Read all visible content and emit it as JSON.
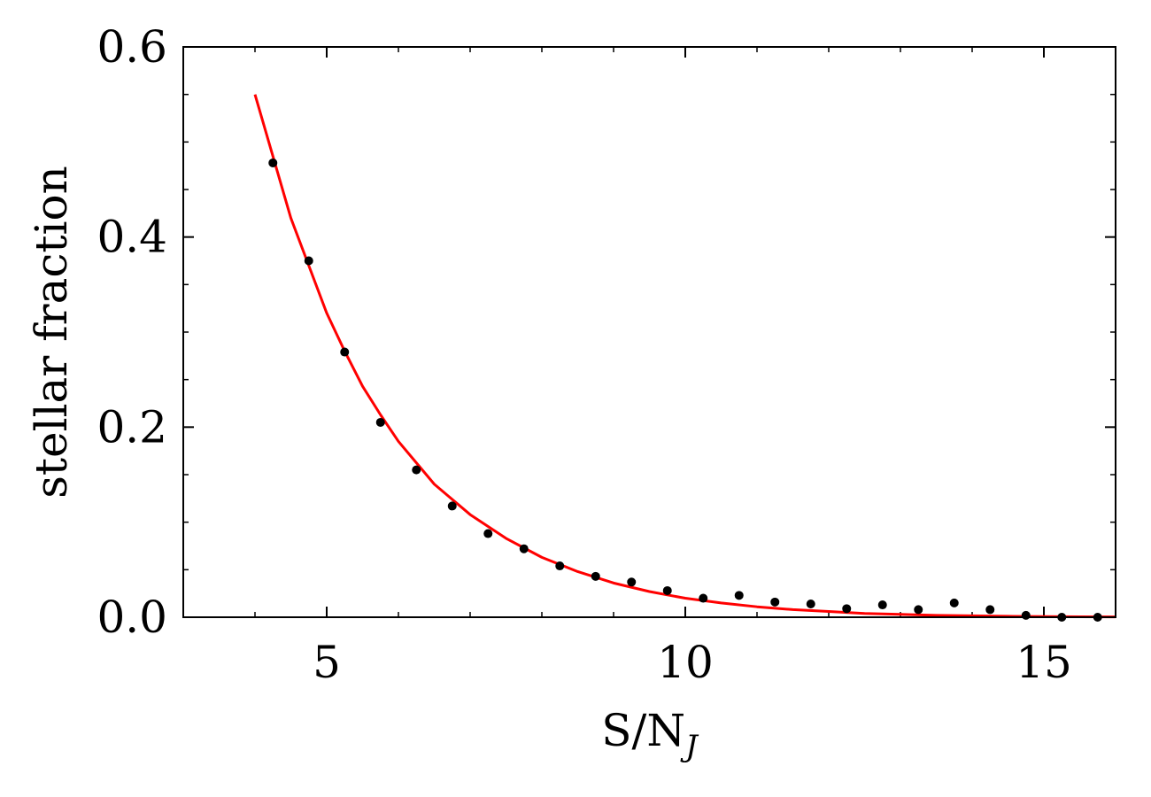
{
  "chart_data": {
    "type": "scatter",
    "title": "",
    "xlabel": "S/N",
    "xlabel_subscript": "J",
    "ylabel": "stellar fraction",
    "xlim": [
      3,
      16
    ],
    "ylim": [
      0,
      0.6
    ],
    "grid": false,
    "x_ticks": [
      5,
      10,
      15
    ],
    "x_tick_labels": [
      "5",
      "10",
      "15"
    ],
    "y_ticks": [
      0,
      0.2,
      0.4,
      0.6
    ],
    "y_tick_labels": [
      "0.0",
      "0.2",
      "0.4",
      "0.6"
    ],
    "series": [
      {
        "kind": "points",
        "color": "#000000",
        "x": [
          4.25,
          4.75,
          5.25,
          5.75,
          6.25,
          6.75,
          7.25,
          7.75,
          8.25,
          8.75,
          9.25,
          9.75,
          10.25,
          10.75,
          11.25,
          11.75,
          12.25,
          12.75,
          13.25,
          13.75,
          14.25,
          14.75,
          15.25,
          15.75
        ],
        "y": [
          0.478,
          0.375,
          0.279,
          0.205,
          0.155,
          0.117,
          0.088,
          0.072,
          0.054,
          0.043,
          0.037,
          0.028,
          0.02,
          0.023,
          0.016,
          0.014,
          0.009,
          0.013,
          0.008,
          0.015,
          0.008,
          0.002,
          0.0,
          0.0
        ]
      },
      {
        "kind": "line",
        "color": "#ff0000",
        "x": [
          4.0,
          4.25,
          4.5,
          4.75,
          5.0,
          5.25,
          5.5,
          5.75,
          6.0,
          6.5,
          7.0,
          7.5,
          8.0,
          8.5,
          9.0,
          9.5,
          10.0,
          10.5,
          11.0,
          11.5,
          12.0,
          12.5,
          13.0,
          13.5,
          14.0,
          14.5,
          15.0,
          15.5,
          16.0
        ],
        "y": [
          0.55,
          0.485,
          0.42,
          0.37,
          0.32,
          0.28,
          0.243,
          0.213,
          0.185,
          0.14,
          0.108,
          0.083,
          0.063,
          0.048,
          0.036,
          0.027,
          0.02,
          0.015,
          0.011,
          0.008,
          0.006,
          0.004,
          0.003,
          0.002,
          0.0015,
          0.001,
          0.0007,
          0.0005,
          0.0003
        ]
      }
    ]
  }
}
